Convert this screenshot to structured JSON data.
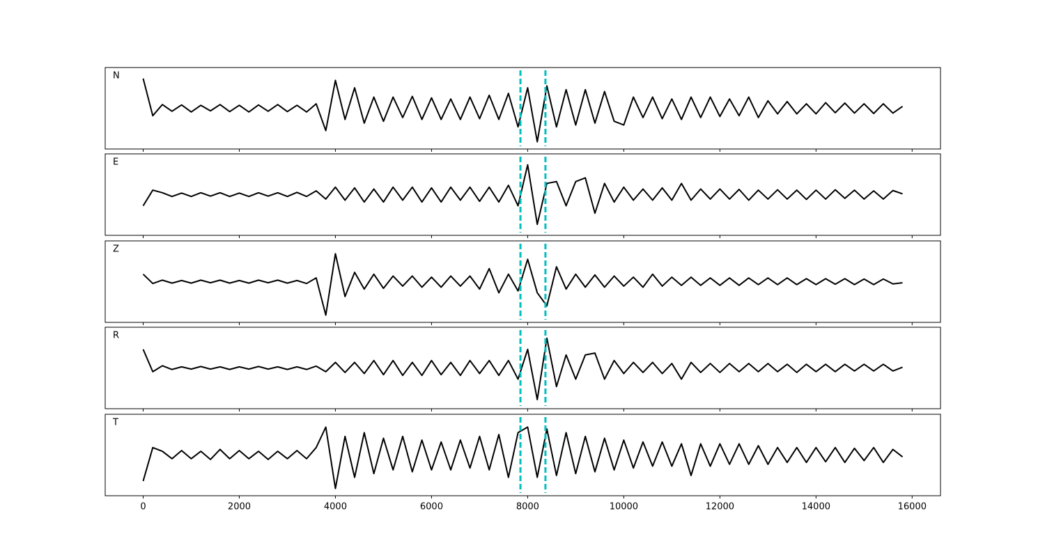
{
  "chart_data": [
    {
      "type": "line",
      "label": "N",
      "x": [
        0,
        200,
        400,
        600,
        800,
        1000,
        1200,
        1400,
        1600,
        1800,
        2000,
        2200,
        2400,
        2600,
        2800,
        3000,
        3200,
        3400,
        3600,
        3800,
        4000,
        4200,
        4400,
        4600,
        4800,
        5000,
        5200,
        5400,
        5600,
        5800,
        6000,
        6200,
        6400,
        6600,
        6800,
        7000,
        7200,
        7400,
        7600,
        7800,
        8000,
        8200,
        8400,
        8600,
        8800,
        9000,
        9200,
        9400,
        9600,
        9800,
        10000,
        10200,
        10400,
        10600,
        10800,
        11000,
        11200,
        11400,
        11600,
        11800,
        12000,
        12200,
        12400,
        12600,
        12800,
        13000,
        13200,
        13400,
        13600,
        13800,
        14000,
        14200,
        14400,
        14600,
        14800,
        15000,
        15200,
        15400,
        15600,
        15800
      ],
      "series": [
        {
          "color": "#000000",
          "values": [
            0.8,
            -0.2,
            0.1,
            -0.08,
            0.09,
            -0.1,
            0.08,
            -0.07,
            0.1,
            -0.09,
            0.08,
            -0.1,
            0.09,
            -0.08,
            0.1,
            -0.09,
            0.08,
            -0.1,
            0.12,
            -0.6,
            0.75,
            -0.3,
            0.55,
            -0.4,
            0.3,
            -0.35,
            0.3,
            -0.25,
            0.32,
            -0.3,
            0.28,
            -0.3,
            0.25,
            -0.3,
            0.3,
            -0.28,
            0.35,
            -0.3,
            0.4,
            -0.5,
            0.55,
            -0.9,
            0.6,
            -0.5,
            0.5,
            -0.45,
            0.5,
            -0.4,
            0.45,
            -0.35,
            -0.45,
            0.3,
            -0.25,
            0.3,
            -0.28,
            0.25,
            -0.3,
            0.3,
            -0.25,
            0.3,
            -0.22,
            0.25,
            -0.2,
            0.3,
            -0.25,
            0.2,
            -0.15,
            0.18,
            -0.15,
            0.12,
            -0.15,
            0.15,
            -0.12,
            0.14,
            -0.13,
            0.12,
            -0.14,
            0.12,
            -0.13,
            0.05
          ]
        }
      ],
      "xlim": [
        -790,
        16590
      ],
      "ylim": [
        -1,
        1
      ],
      "xticks": [
        0,
        2000,
        4000,
        6000,
        8000,
        10000,
        12000,
        14000,
        16000
      ],
      "vlines": [
        7850,
        8370
      ],
      "vline_color": "#00bfbf"
    },
    {
      "type": "line",
      "label": "E",
      "x": [
        0,
        200,
        400,
        600,
        800,
        1000,
        1200,
        1400,
        1600,
        1800,
        2000,
        2200,
        2400,
        2600,
        2800,
        3000,
        3200,
        3400,
        3600,
        3800,
        4000,
        4200,
        4400,
        4600,
        4800,
        5000,
        5200,
        5400,
        5600,
        5800,
        6000,
        6200,
        6400,
        6600,
        6800,
        7000,
        7200,
        7400,
        7600,
        7800,
        8000,
        8200,
        8400,
        8600,
        8800,
        9000,
        9200,
        9400,
        9600,
        9800,
        10000,
        10200,
        10400,
        10600,
        10800,
        11000,
        11200,
        11400,
        11600,
        11800,
        12000,
        12200,
        12400,
        12600,
        12800,
        13000,
        13200,
        13400,
        13600,
        13800,
        14000,
        14200,
        14400,
        14600,
        14800,
        15000,
        15200,
        15400,
        15600,
        15800
      ],
      "series": [
        {
          "color": "#000000",
          "values": [
            -0.3,
            0.12,
            0.05,
            -0.05,
            0.04,
            -0.05,
            0.05,
            -0.04,
            0.05,
            -0.05,
            0.04,
            -0.05,
            0.05,
            -0.04,
            0.05,
            -0.05,
            0.06,
            -0.05,
            0.1,
            -0.12,
            0.2,
            -0.15,
            0.18,
            -0.2,
            0.15,
            -0.2,
            0.2,
            -0.15,
            0.2,
            -0.2,
            0.18,
            -0.2,
            0.2,
            -0.15,
            0.2,
            -0.18,
            0.2,
            -0.2,
            0.25,
            -0.3,
            0.8,
            -0.8,
            0.3,
            0.35,
            -0.3,
            0.35,
            0.45,
            -0.5,
            0.3,
            -0.2,
            0.2,
            -0.15,
            0.15,
            -0.15,
            0.18,
            -0.15,
            0.3,
            -0.15,
            0.15,
            -0.12,
            0.15,
            -0.12,
            0.14,
            -0.15,
            0.12,
            -0.12,
            0.13,
            -0.12,
            0.12,
            -0.13,
            0.12,
            -0.12,
            0.13,
            -0.1,
            0.12,
            -0.12,
            0.1,
            -0.12,
            0.11,
            0.02
          ]
        }
      ],
      "xlim": [
        -790,
        16590
      ],
      "ylim": [
        -1,
        1
      ],
      "xticks": [
        0,
        2000,
        4000,
        6000,
        8000,
        10000,
        12000,
        14000,
        16000
      ],
      "vlines": [
        7850,
        8370
      ],
      "vline_color": "#00bfbf"
    },
    {
      "type": "line",
      "label": "Z",
      "x": [
        0,
        200,
        400,
        600,
        800,
        1000,
        1200,
        1400,
        1600,
        1800,
        2000,
        2200,
        2400,
        2600,
        2800,
        3000,
        3200,
        3400,
        3600,
        3800,
        4000,
        4200,
        4400,
        4600,
        4800,
        5000,
        5200,
        5400,
        5600,
        5800,
        6000,
        6200,
        6400,
        6600,
        6800,
        7000,
        7200,
        7400,
        7600,
        7800,
        8000,
        8200,
        8400,
        8600,
        8800,
        9000,
        9200,
        9400,
        9600,
        9800,
        10000,
        10200,
        10400,
        10600,
        10800,
        11000,
        11200,
        11400,
        11600,
        11800,
        12000,
        12200,
        12400,
        12600,
        12800,
        13000,
        13200,
        13400,
        13600,
        13800,
        14000,
        14200,
        14400,
        14600,
        14800,
        15000,
        15200,
        15400,
        15600,
        15800
      ],
      "series": [
        {
          "color": "#000000",
          "values": [
            0.2,
            -0.05,
            0.04,
            -0.04,
            0.03,
            -0.04,
            0.04,
            -0.03,
            0.04,
            -0.04,
            0.03,
            -0.04,
            0.04,
            -0.03,
            0.04,
            -0.04,
            0.03,
            -0.05,
            0.1,
            -0.9,
            0.75,
            -0.4,
            0.25,
            -0.2,
            0.2,
            -0.18,
            0.15,
            -0.12,
            0.15,
            -0.15,
            0.12,
            -0.15,
            0.15,
            -0.12,
            0.15,
            -0.2,
            0.35,
            -0.3,
            0.2,
            -0.25,
            0.6,
            -0.3,
            -0.65,
            0.4,
            -0.2,
            0.2,
            -0.15,
            0.18,
            -0.15,
            0.15,
            -0.12,
            0.12,
            -0.15,
            0.2,
            -0.12,
            0.12,
            -0.1,
            0.12,
            -0.1,
            0.1,
            -0.1,
            0.1,
            -0.1,
            0.1,
            -0.08,
            0.1,
            -0.08,
            0.1,
            -0.08,
            0.08,
            -0.08,
            0.08,
            -0.07,
            0.08,
            -0.08,
            0.07,
            -0.08,
            0.07,
            -0.06,
            -0.03
          ]
        }
      ],
      "xlim": [
        -790,
        16590
      ],
      "ylim": [
        -1,
        1
      ],
      "xticks": [
        0,
        2000,
        4000,
        6000,
        8000,
        10000,
        12000,
        14000,
        16000
      ],
      "vlines": [
        7850,
        8370
      ],
      "vline_color": "#00bfbf"
    },
    {
      "type": "line",
      "label": "R",
      "x": [
        0,
        200,
        400,
        600,
        800,
        1000,
        1200,
        1400,
        1600,
        1800,
        2000,
        2200,
        2400,
        2600,
        2800,
        3000,
        3200,
        3400,
        3600,
        3800,
        4000,
        4200,
        4400,
        4600,
        4800,
        5000,
        5200,
        5400,
        5600,
        5800,
        6000,
        6200,
        6400,
        6600,
        6800,
        7000,
        7200,
        7400,
        7600,
        7800,
        8000,
        8200,
        8400,
        8600,
        8800,
        9000,
        9200,
        9400,
        9600,
        9800,
        10000,
        10200,
        10400,
        10600,
        10800,
        11000,
        11200,
        11400,
        11600,
        11800,
        12000,
        12200,
        12400,
        12600,
        12800,
        13000,
        13200,
        13400,
        13600,
        13800,
        14000,
        14200,
        14400,
        14600,
        14800,
        15000,
        15200,
        15400,
        15600,
        15800
      ],
      "series": [
        {
          "color": "#000000",
          "values": [
            0.5,
            -0.1,
            0.06,
            -0.04,
            0.03,
            -0.03,
            0.04,
            -0.03,
            0.03,
            -0.04,
            0.03,
            -0.03,
            0.04,
            -0.03,
            0.03,
            -0.04,
            0.03,
            -0.04,
            0.05,
            -0.1,
            0.15,
            -0.12,
            0.15,
            -0.15,
            0.2,
            -0.18,
            0.2,
            -0.2,
            0.15,
            -0.2,
            0.2,
            -0.18,
            0.15,
            -0.2,
            0.2,
            -0.15,
            0.2,
            -0.2,
            0.2,
            -0.3,
            0.5,
            -0.85,
            0.8,
            -0.5,
            0.35,
            -0.3,
            0.35,
            0.4,
            -0.3,
            0.2,
            -0.15,
            0.15,
            -0.12,
            0.15,
            -0.15,
            0.12,
            -0.3,
            0.15,
            -0.12,
            0.12,
            -0.12,
            0.12,
            -0.1,
            0.12,
            -0.1,
            0.12,
            -0.1,
            0.1,
            -0.12,
            0.1,
            -0.1,
            0.1,
            -0.1,
            0.1,
            -0.08,
            0.1,
            -0.08,
            0.1,
            -0.08,
            0.02
          ]
        }
      ],
      "xlim": [
        -790,
        16590
      ],
      "ylim": [
        -1,
        1
      ],
      "xticks": [
        0,
        2000,
        4000,
        6000,
        8000,
        10000,
        12000,
        14000,
        16000
      ],
      "vlines": [
        7850,
        8370
      ],
      "vline_color": "#00bfbf"
    },
    {
      "type": "line",
      "label": "T",
      "x": [
        0,
        200,
        400,
        600,
        800,
        1000,
        1200,
        1400,
        1600,
        1800,
        2000,
        2200,
        2400,
        2600,
        2800,
        3000,
        3200,
        3400,
        3600,
        3800,
        4000,
        4200,
        4400,
        4600,
        4800,
        5000,
        5200,
        5400,
        5600,
        5800,
        6000,
        6200,
        6400,
        6600,
        6800,
        7000,
        7200,
        7400,
        7600,
        7800,
        8000,
        8200,
        8400,
        8600,
        8800,
        9000,
        9200,
        9400,
        9600,
        9800,
        10000,
        10200,
        10400,
        10600,
        10800,
        11000,
        11200,
        11400,
        11600,
        11800,
        12000,
        12200,
        12400,
        12600,
        12800,
        13000,
        13200,
        13400,
        13600,
        13800,
        14000,
        14200,
        14400,
        14600,
        14800,
        15000,
        15200,
        15400,
        15600,
        15800
      ],
      "series": [
        {
          "color": "#000000",
          "values": [
            -0.7,
            0.2,
            0.1,
            -0.1,
            0.12,
            -0.1,
            0.1,
            -0.12,
            0.15,
            -0.1,
            0.12,
            -0.1,
            0.1,
            -0.12,
            0.1,
            -0.1,
            0.12,
            -0.1,
            0.2,
            0.75,
            -0.9,
            0.5,
            -0.6,
            0.6,
            -0.5,
            0.45,
            -0.4,
            0.5,
            -0.45,
            0.4,
            -0.4,
            0.35,
            -0.4,
            0.4,
            -0.35,
            0.5,
            -0.4,
            0.55,
            -0.6,
            0.6,
            0.75,
            -0.6,
            0.7,
            -0.55,
            0.6,
            -0.5,
            0.5,
            -0.45,
            0.45,
            -0.4,
            0.4,
            -0.35,
            0.35,
            -0.3,
            0.35,
            -0.3,
            0.3,
            -0.55,
            0.3,
            -0.3,
            0.3,
            -0.25,
            0.3,
            -0.25,
            0.25,
            -0.25,
            0.2,
            -0.2,
            0.2,
            -0.2,
            0.2,
            -0.18,
            0.2,
            -0.2,
            0.18,
            -0.15,
            0.2,
            -0.2,
            0.15,
            -0.05
          ]
        }
      ],
      "xlim": [
        -790,
        16590
      ],
      "ylim": [
        -1,
        1
      ],
      "xticks": [
        0,
        2000,
        4000,
        6000,
        8000,
        10000,
        12000,
        14000,
        16000
      ],
      "vlines": [
        7850,
        8370
      ],
      "vline_color": "#00bfbf"
    }
  ]
}
